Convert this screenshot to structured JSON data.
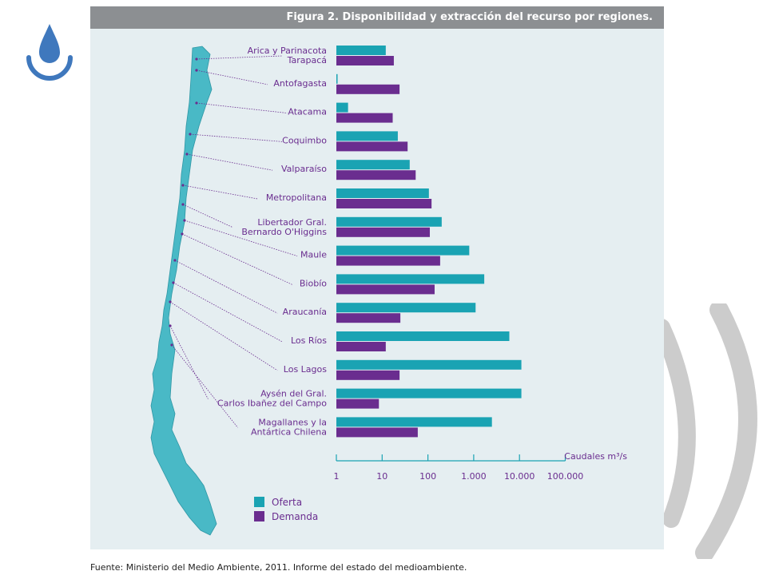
{
  "figure": {
    "title": "Figura 2. Disponibilidad y extracción del recurso por regiones."
  },
  "source": "Fuente: Ministerio del Medio Ambiente, 2011. Informe del estado del medioambiente.",
  "colors": {
    "oferta": "#1aa3b3",
    "demanda": "#6a2d8f",
    "label_text": "#6a2d8f",
    "map": "#49b9c6",
    "axis": "#1aa3b3",
    "header_bg": "#8c8f92",
    "figure_bg": "#e5eef1"
  },
  "icons": {
    "logo": "water-drop-icon",
    "map": "chile-map-icon"
  },
  "chart_data": {
    "type": "bar",
    "orientation": "horizontal",
    "x_scale": "log",
    "xlabel": "Caudales m³/s",
    "xlim": [
      1,
      100000
    ],
    "x_ticks": [
      {
        "value": 1,
        "label": "1"
      },
      {
        "value": 10,
        "label": "10"
      },
      {
        "value": 100,
        "label": "100"
      },
      {
        "value": 1000,
        "label": "1.000"
      },
      {
        "value": 10000,
        "label": "10.000"
      },
      {
        "value": 100000,
        "label": "100.000"
      }
    ],
    "categories": [
      [
        "Arica y Parinacota",
        "Tarapacá"
      ],
      [
        "Antofagasta"
      ],
      [
        "Atacama"
      ],
      [
        "Coquimbo"
      ],
      [
        "Valparaíso"
      ],
      [
        "Metropolitana"
      ],
      [
        "Libertador Gral.",
        "Bernardo O'Higgins"
      ],
      [
        "Maule"
      ],
      [
        "Biobío"
      ],
      [
        "Araucanía"
      ],
      [
        "Los Ríos"
      ],
      [
        "Los Lagos"
      ],
      [
        "Aysén del Gral.",
        "Carlos Ibañez del Campo"
      ],
      [
        "Magallanes y la",
        "Antártica Chilena"
      ]
    ],
    "series": [
      {
        "name": "Oferta",
        "values": [
          12,
          1,
          1.8,
          22,
          40,
          105,
          200,
          800,
          1700,
          1100,
          6000,
          11000,
          11000,
          2500
        ]
      },
      {
        "name": "Demanda",
        "values": [
          18,
          24,
          17,
          36,
          54,
          120,
          110,
          185,
          140,
          25,
          12,
          24,
          8.5,
          60
        ]
      }
    ],
    "legend": {
      "placement": "bottom-left",
      "entries": [
        "Oferta",
        "Demanda"
      ]
    },
    "grid": false
  }
}
